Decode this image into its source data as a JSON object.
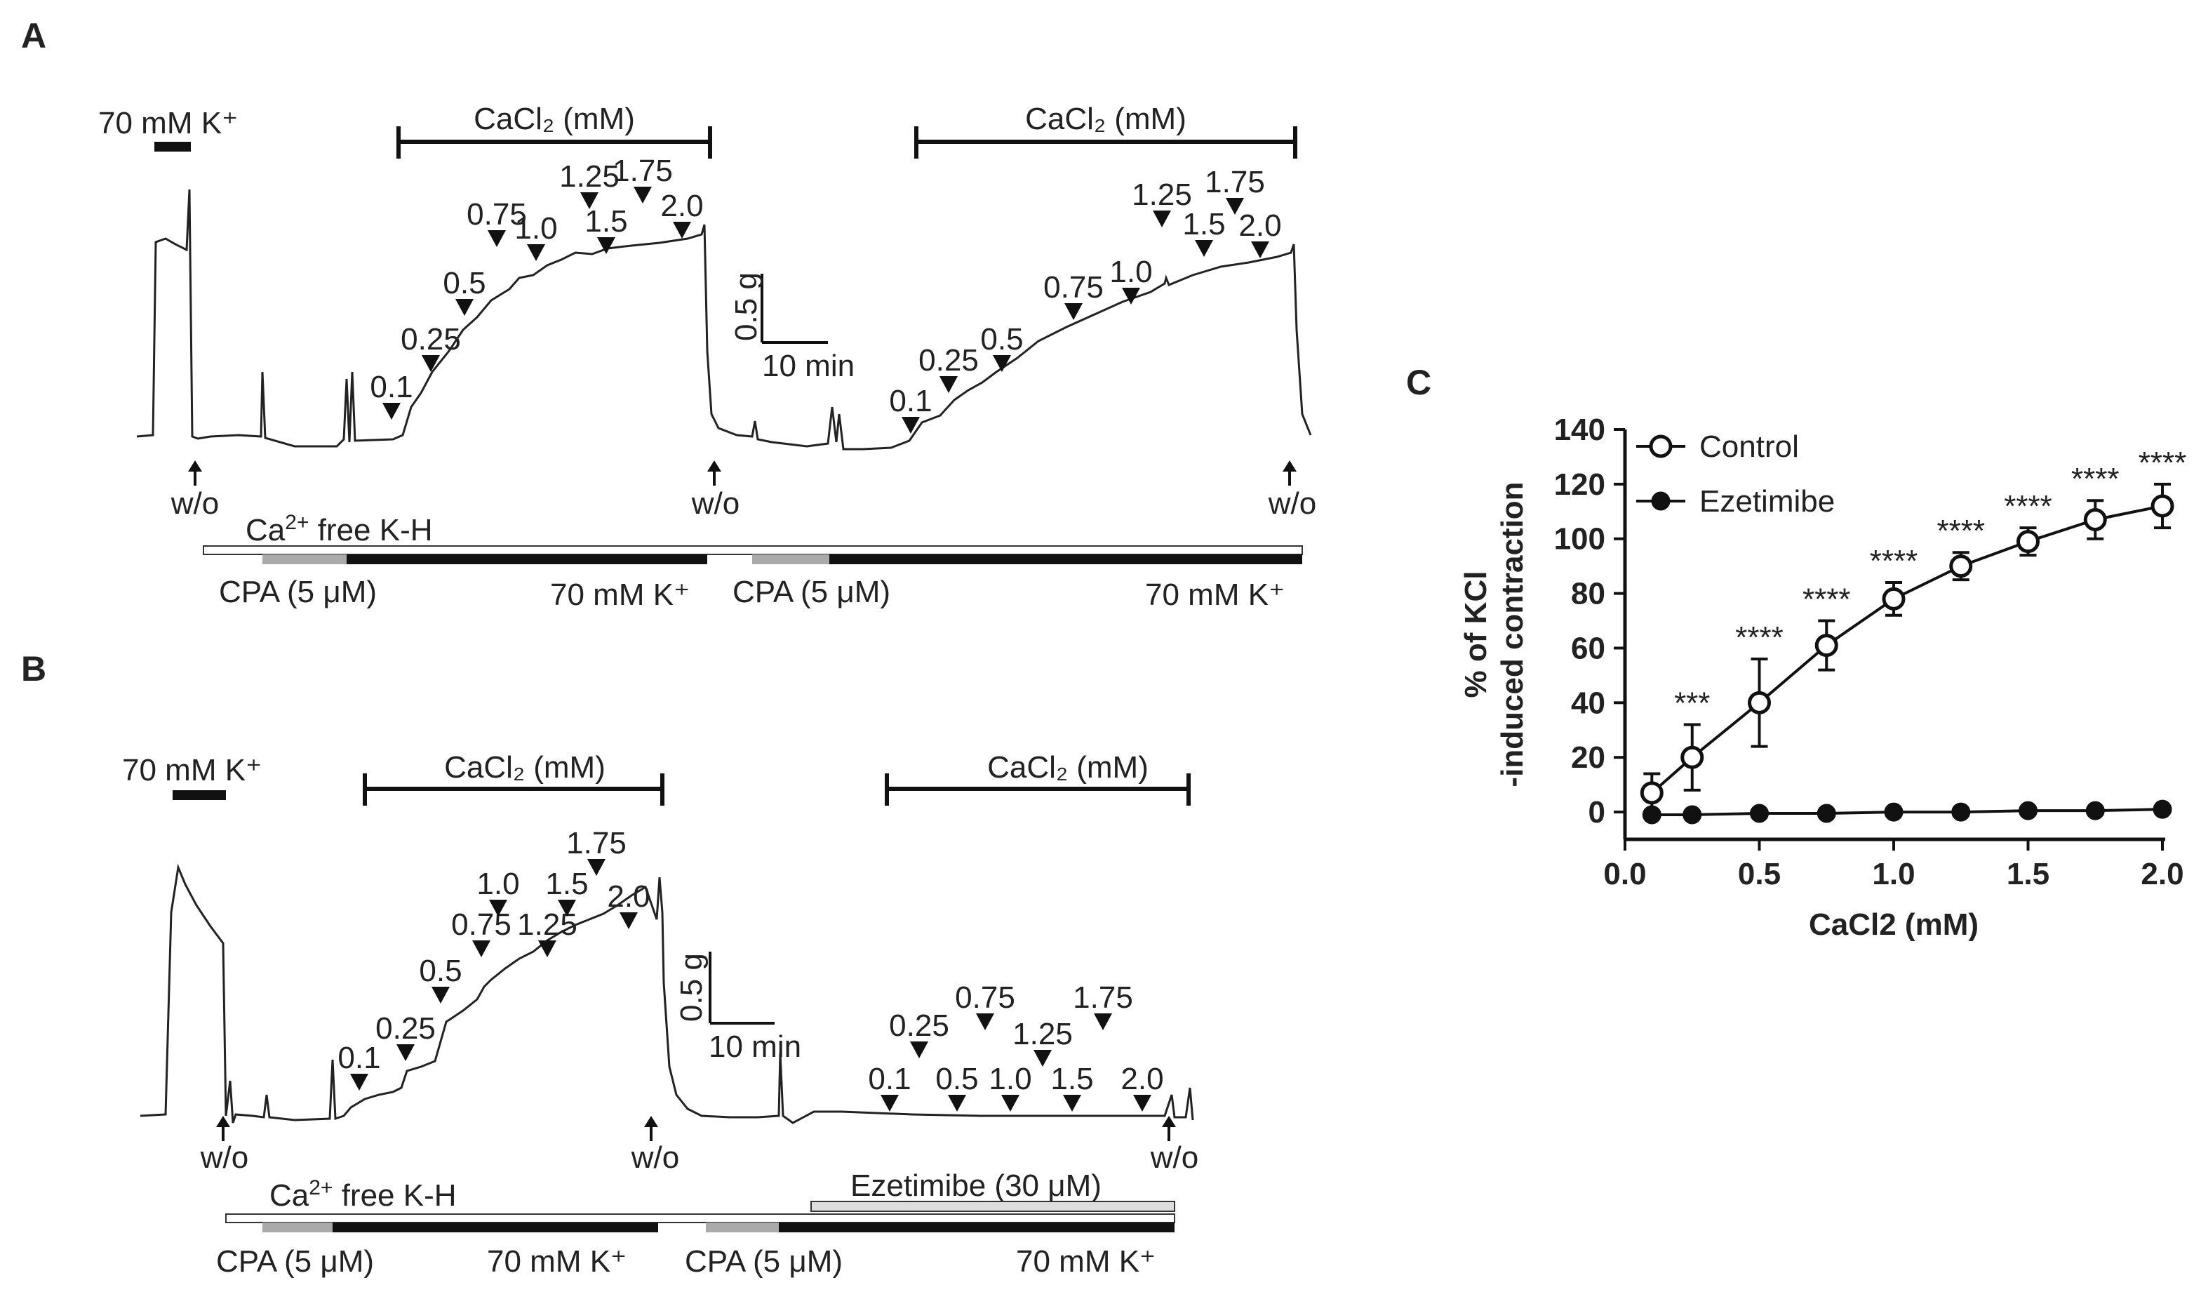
{
  "panel_a": {
    "letter": "A",
    "kcl_label": "70 mM K⁺",
    "cacl2_label": "CaCl₂ (mM)",
    "scale_y": "0.5 g",
    "scale_x": "10 min",
    "washout_label": "w/o",
    "ca_free_prefix": "Ca",
    "ca_free_sup": "2+",
    "ca_free_suffix": " free K-H",
    "cpa_label": "CPA (5 μM)",
    "k_label": "70 mM K⁺",
    "markers_run1": [
      "0.1",
      "0.25",
      "0.5",
      "0.75",
      "1.0",
      "1.25",
      "1.5",
      "1.75",
      "2.0"
    ],
    "markers_run2": [
      "0.1",
      "0.25",
      "0.5",
      "0.75",
      "1.0",
      "1.25",
      "1.5",
      "1.75",
      "2.0"
    ]
  },
  "panel_b": {
    "letter": "B",
    "kcl_label": "70 mM K⁺",
    "cacl2_label": "CaCl₂ (mM)",
    "scale_y": "0.5 g",
    "scale_x": "10 min",
    "washout_label": "w/o",
    "ca_free_prefix": "Ca",
    "ca_free_sup": "2+",
    "ca_free_suffix": " free K-H",
    "ezetimibe_label": "Ezetimibe  (30 μM)",
    "cpa_label": "CPA (5 μM)",
    "k_label": "70 mM K⁺",
    "markers_run1": [
      "0.1",
      "0.25",
      "0.5",
      "0.75",
      "1.0",
      "1.25",
      "1.5",
      "1.75",
      "2.0"
    ],
    "markers_run2": [
      "0.1",
      "0.25",
      "0.5",
      "0.75",
      "1.0",
      "1.25",
      "1.5",
      "1.75",
      "2.0"
    ]
  },
  "chart_data": {
    "panel": "C",
    "type": "line",
    "xlabel": "CaCl2 (mM)",
    "ylabel": [
      "% of KCl",
      "-induced contraction"
    ],
    "xlim": [
      0,
      2.0
    ],
    "ylim": [
      -10,
      140
    ],
    "xticks": [
      "0.0",
      "0.5",
      "1.0",
      "1.5",
      "2.0"
    ],
    "yticks": [
      "0",
      "20",
      "40",
      "60",
      "80",
      "100",
      "120",
      "140"
    ],
    "x": [
      0.1,
      0.25,
      0.5,
      0.75,
      1.0,
      1.25,
      1.5,
      1.75,
      2.0
    ],
    "series": [
      {
        "name": "Control",
        "marker": "open-circle",
        "values": [
          7,
          20,
          40,
          61,
          78,
          90,
          99,
          107,
          112
        ],
        "errors": [
          7,
          12,
          16,
          9,
          6,
          5,
          5,
          7,
          8
        ],
        "significance": [
          "",
          "***",
          "****",
          "****",
          "****",
          "****",
          "****",
          "****",
          "****"
        ]
      },
      {
        "name": "Ezetimibe",
        "marker": "filled-circle",
        "values": [
          -1,
          -1,
          -0.5,
          -0.5,
          0,
          0,
          0.5,
          0.5,
          1
        ],
        "errors": [
          0,
          0,
          0,
          0,
          0,
          0,
          0,
          0,
          0
        ]
      }
    ],
    "legend": "top-left"
  }
}
